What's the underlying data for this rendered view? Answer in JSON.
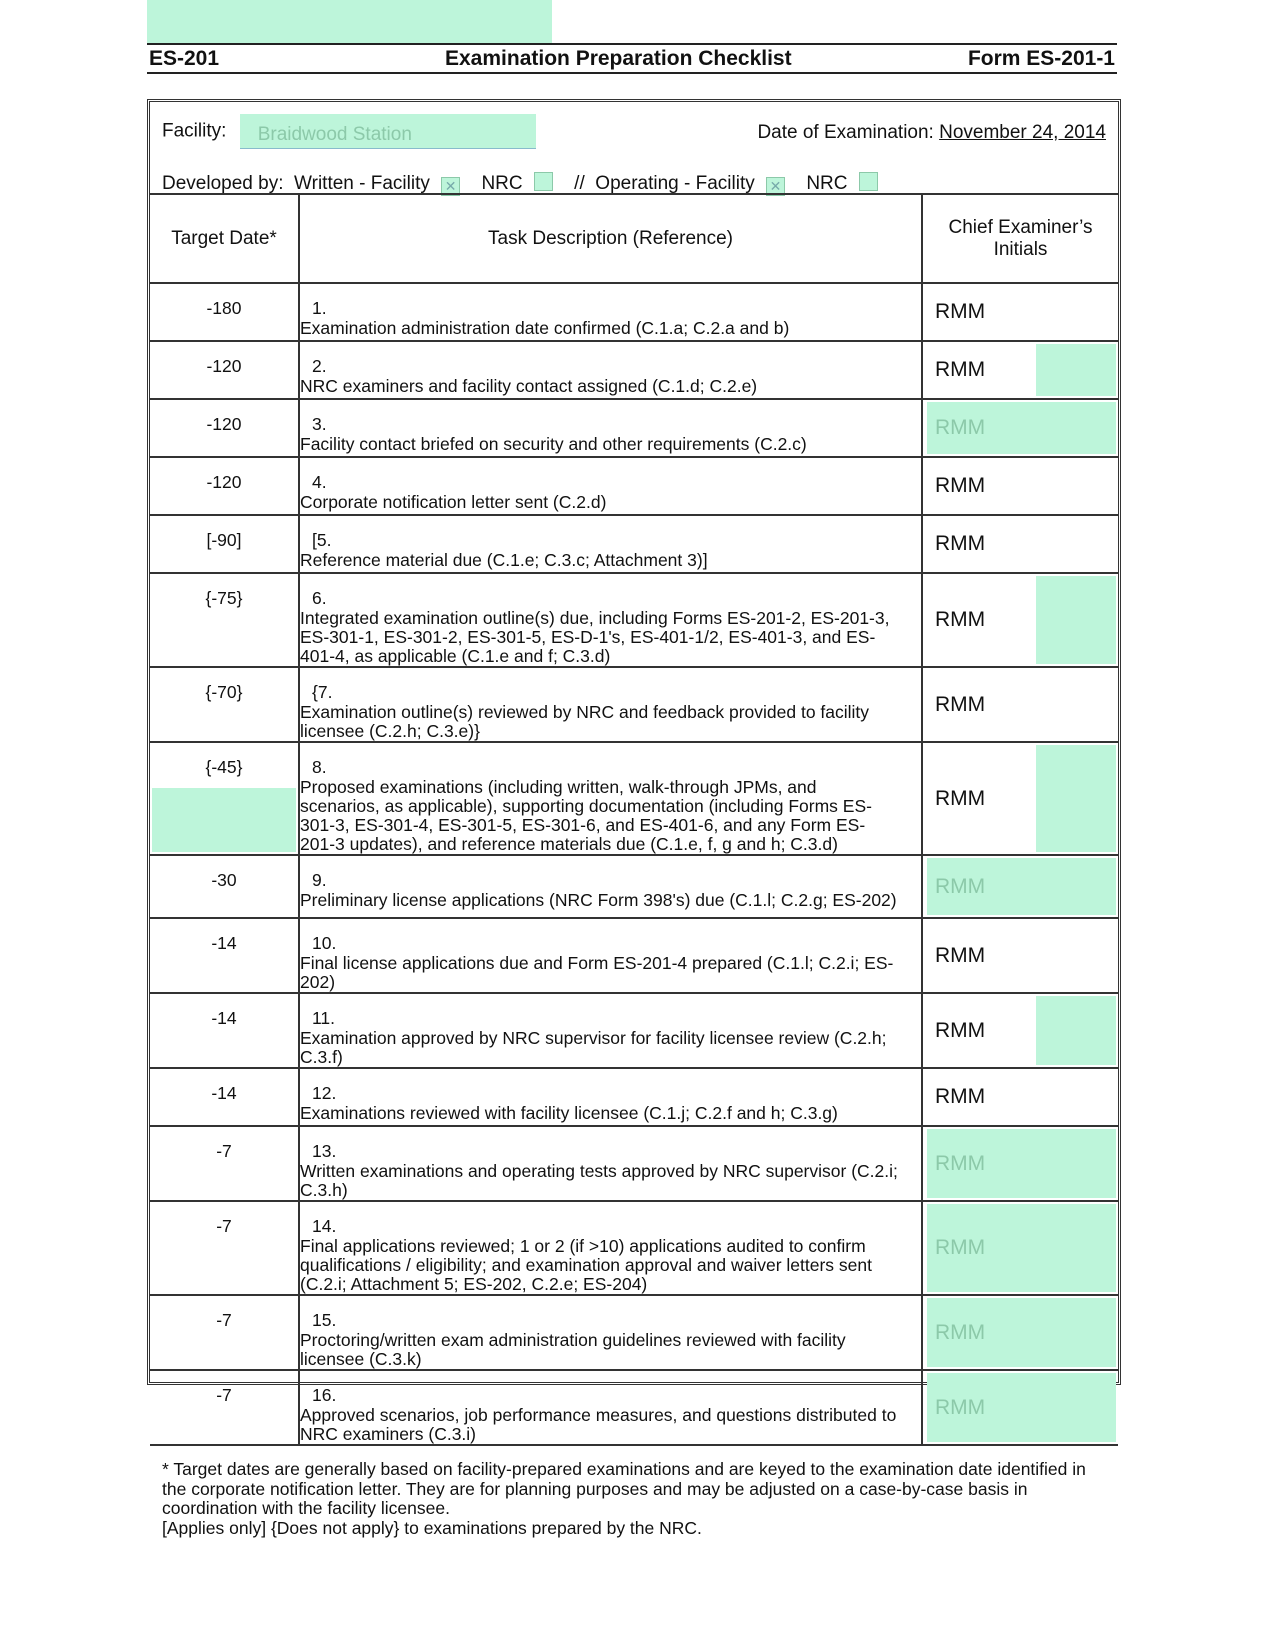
{
  "header": {
    "left": "ES-201",
    "title": "Examination Preparation Checklist",
    "right": "Form ES-201-1"
  },
  "facility": {
    "label": "Facility:",
    "value": "Braidwood Station"
  },
  "exam_date": {
    "label": "Date of Examination:",
    "value": "November 24, 2014"
  },
  "developed_by": {
    "label": "Developed by:",
    "written_label": "Written - Facility",
    "written_facility_checked": true,
    "nrc_label": "NRC",
    "written_nrc_checked": false,
    "separator": "//",
    "operating_label": "Operating - Facility",
    "operating_facility_checked": true,
    "operating_nrc_checked": false
  },
  "columns": {
    "target": "Target Date*",
    "task": "Task Description (Reference)",
    "initials": "Chief Examiner’s Initials"
  },
  "rows": [
    {
      "target": "-180",
      "num": "1.",
      "task": "Examination administration date confirmed (C.1.a; C.2.a and b)",
      "initials": "RMM",
      "hl": "none",
      "h": 48
    },
    {
      "target": "-120",
      "num": "2.",
      "task": "NRC examiners and facility contact assigned (C.1.d; C.2.e)",
      "initials": "RMM",
      "hl": "partial",
      "h": 47
    },
    {
      "target": "-120",
      "num": "3.",
      "task": "Facility contact briefed on security and other requirements (C.2.c)",
      "initials": "RMM",
      "hl": "full",
      "h": 48
    },
    {
      "target": "-120",
      "num": "4.",
      "task": "Corporate notification letter sent (C.2.d)",
      "initials": "RMM",
      "hl": "none",
      "h": 48
    },
    {
      "target": "[-90]",
      "num": "[5.",
      "task": "Reference material due (C.1.e; C.3.c; Attachment 3)]",
      "initials": "RMM",
      "hl": "none",
      "h": 47
    },
    {
      "target": "{-75}",
      "num": "6.",
      "task": "Integrated examination outline(s) due, including Forms ES-201-2, ES-201-3, ES-301-1, ES-301-2, ES-301-5, ES-D-1's, ES-401-1/2, ES-401-3, and ES-401-4, as applicable (C.1.e and f; C.3.d)",
      "initials": "RMM",
      "hl": "partial",
      "h": 83
    },
    {
      "target": "{-70}",
      "num": "{7.",
      "task": "Examination outline(s) reviewed by NRC and feedback provided to facility licensee (C.2.h; C.3.e)}",
      "initials": "RMM",
      "hl": "none",
      "h": 63
    },
    {
      "target": "{-45}",
      "num": "8.",
      "task": "Proposed examinations (including written, walk-through JPMs, and scenarios, as applicable), supporting documentation (including Forms ES-301-3, ES-301-4, ES-301-5, ES-301-6, and ES-401-6, and any Form ES-201-3 updates), and reference materials due (C.1.e, f, g and h; C.3.d)",
      "initials": "RMM",
      "hl": "partial",
      "h": 102,
      "target_hl": true
    },
    {
      "target": "-30",
      "num": "9.",
      "task": "Preliminary license applications (NRC Form 398's) due (C.1.l; C.2.g; ES-202)",
      "initials": "RMM",
      "hl": "full",
      "h": 63
    },
    {
      "target": "-14",
      "num": "10.",
      "task": "Final license applications due and Form ES-201-4 prepared (C.1.l; C.2.i; ES-202)",
      "initials": "RMM",
      "hl": "none",
      "h": 62
    },
    {
      "target": "-14",
      "num": "11.",
      "task": "Examination approved by NRC supervisor for facility licensee review (C.2.h; C.3.f)",
      "initials": "RMM",
      "hl": "partial",
      "h": 63
    },
    {
      "target": "-14",
      "num": "12.",
      "task": "Examinations reviewed with facility licensee (C.1.j; C.2.f and h; C.3.g)",
      "initials": "RMM",
      "hl": "none",
      "h": 48
    },
    {
      "target": "-7",
      "num": "13.",
      "task": "Written examinations and operating tests approved by NRC supervisor (C.2.i; C.3.h)",
      "initials": "RMM",
      "hl": "full",
      "h": 63
    },
    {
      "target": "-7",
      "num": "14.",
      "task": "Final applications reviewed; 1 or 2 (if >10) applications audited to confirm qualifications / eligibility; and examination approval and waiver letters sent (C.2.i; Attachment 5; ES-202, C.2.e; ES-204)",
      "initials": "RMM",
      "hl": "full",
      "h": 83
    },
    {
      "target": "-7",
      "num": "15.",
      "task": "Proctoring/written exam administration guidelines reviewed with facility licensee (C.3.k)",
      "initials": "RMM",
      "hl": "full",
      "h": 62
    },
    {
      "target": "-7",
      "num": "16.",
      "task": "Approved scenarios, job performance measures, and questions distributed to NRC examiners (C.3.i)",
      "initials": "RMM",
      "hl": "full",
      "h": 63
    }
  ],
  "footnote": {
    "line1": "*  Target dates are generally based on facility-prepared examinations and are keyed to the examination date identified in the corporate notification letter.  They are for planning purposes and may be adjusted on a case-by-case basis in coordination with the facility licensee.",
    "line2": "[Applies only] {Does not apply} to examinations prepared by the NRC."
  },
  "colors": {
    "highlight": "#bdf5da",
    "faint_text": "#8cc9a9"
  }
}
